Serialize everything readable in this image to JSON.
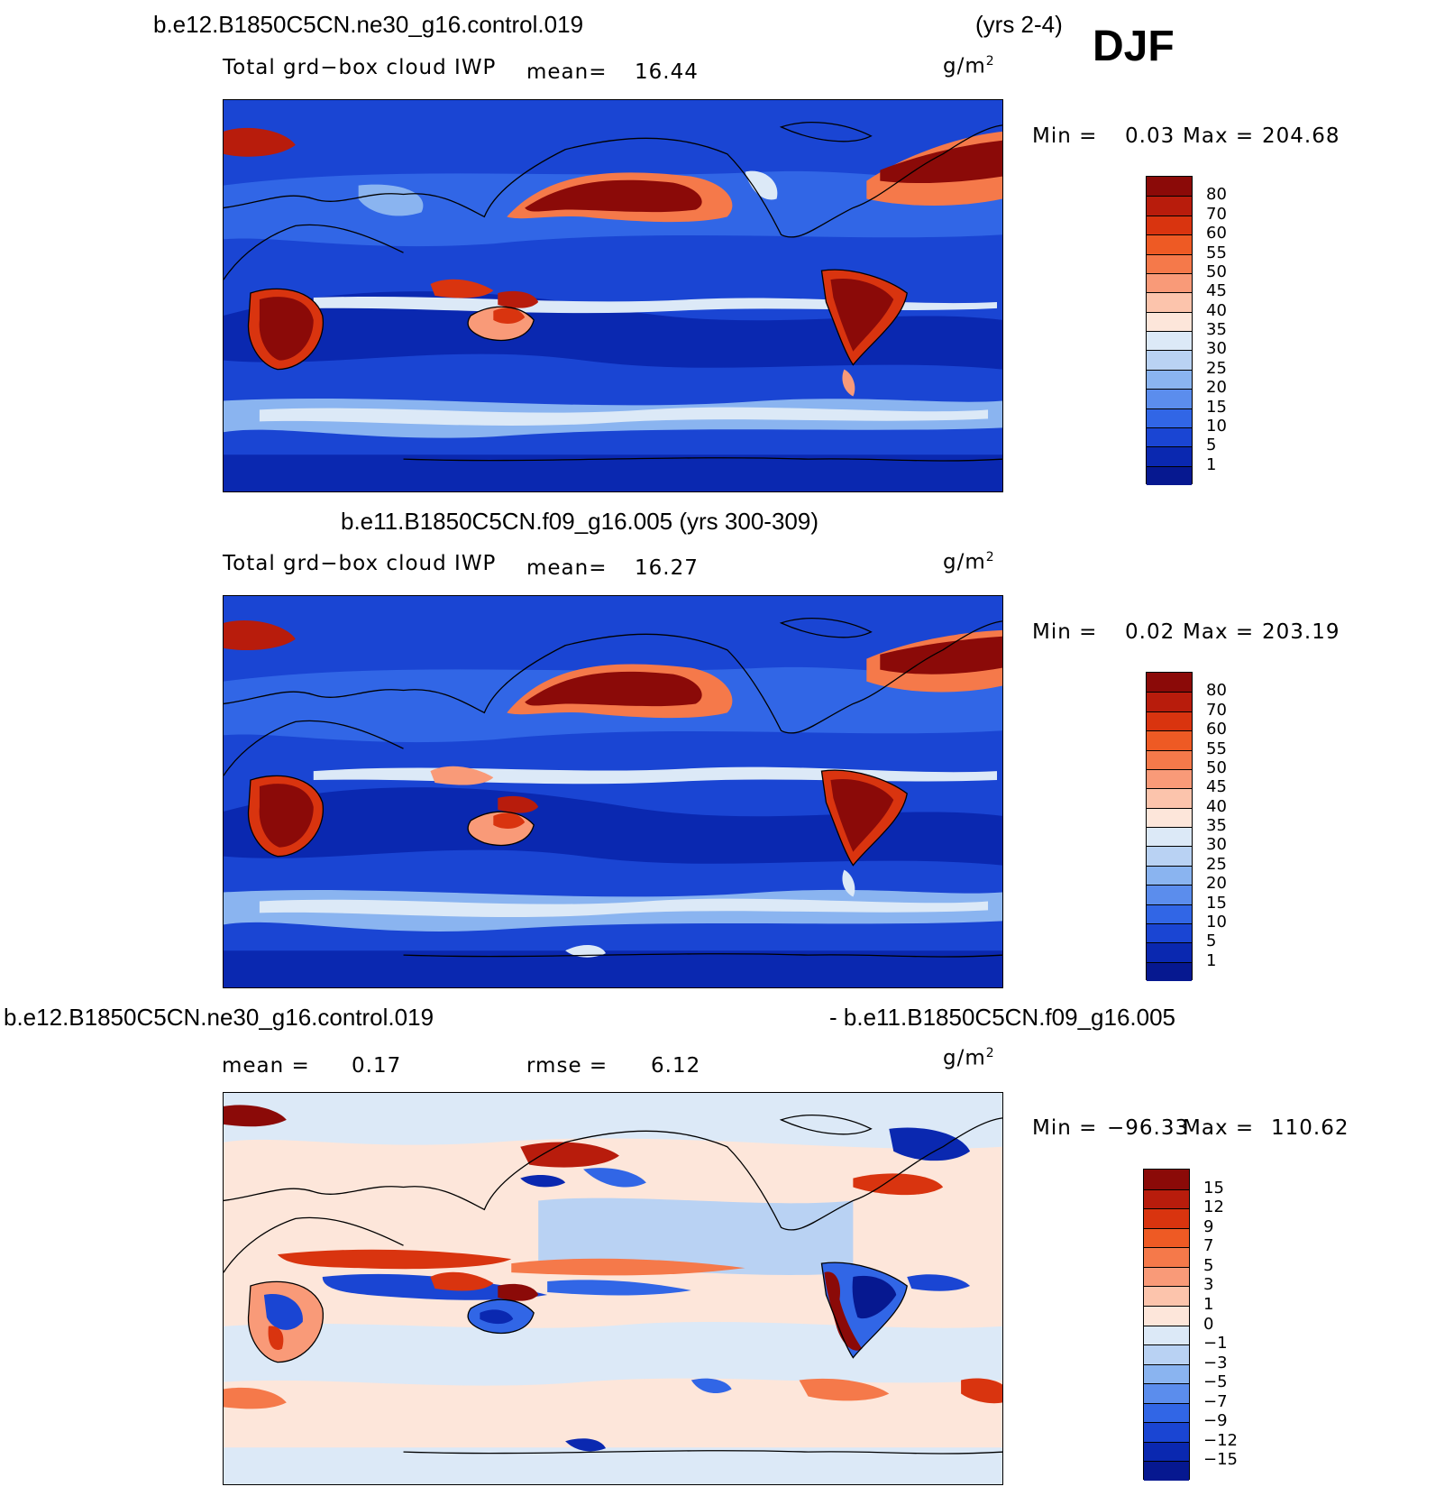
{
  "season": "DJF",
  "panel1": {
    "case": "b.e12.B1850C5CN.ne30_g16.control.019",
    "years": "(yrs 2-4)",
    "variable": "Total grd−box cloud IWP",
    "mean_label": "mean=",
    "mean_value": "16.44",
    "units_base": "g/m",
    "units_exp": "2",
    "min_label": "Min =",
    "min_value": "0.03",
    "max_label": "Max =",
    "max_value": "204.68"
  },
  "panel2": {
    "case": "b.e11.B1850C5CN.f09_g16.005 (yrs 300-309)",
    "variable": "Total grd−box cloud IWP",
    "mean_label": "mean=",
    "mean_value": "16.27",
    "units_base": "g/m",
    "units_exp": "2",
    "min_label": "Min =",
    "min_value": "0.02",
    "max_label": "Max =",
    "max_value": "203.19"
  },
  "panel3": {
    "case_left": "b.e12.B1850C5CN.ne30_g16.control.019",
    "case_right": "- b.e11.B1850C5CN.f09_g16.005",
    "mean_label": "mean =",
    "mean_value": "0.17",
    "rmse_label": "rmse =",
    "rmse_value": "6.12",
    "units_base": "g/m",
    "units_exp": "2",
    "min_label": "Min =",
    "min_value": "−96.33",
    "max_label": "Max =",
    "max_value": "110.62"
  },
  "colorbar_abs": {
    "labels": [
      "80",
      "70",
      "60",
      "55",
      "50",
      "45",
      "40",
      "35",
      "30",
      "25",
      "20",
      "15",
      "10",
      "5",
      "1"
    ],
    "colors": [
      "#8b0a08",
      "#b81c0c",
      "#d9340f",
      "#ee5a24",
      "#f5794a",
      "#f99a78",
      "#fcc4ac",
      "#fde6da",
      "#dce9f7",
      "#b9d2f3",
      "#8ab4f0",
      "#5b8ded",
      "#3166e6",
      "#1a45d3",
      "#0a28b0",
      "#061890"
    ]
  },
  "colorbar_diff": {
    "labels": [
      "15",
      "12",
      "9",
      "7",
      "5",
      "3",
      "1",
      "0",
      "−1",
      "−3",
      "−5",
      "−7",
      "−9",
      "−12",
      "−15"
    ],
    "colors": [
      "#8b0a08",
      "#b81c0c",
      "#d9340f",
      "#ee5a24",
      "#f5794a",
      "#f99a78",
      "#fcc4ac",
      "#fde6da",
      "#dce9f7",
      "#b9d2f3",
      "#8ab4f0",
      "#5b8ded",
      "#3166e6",
      "#1a45d3",
      "#0a28b0",
      "#061890"
    ]
  },
  "palette": {
    "ocean_deep": "#061890",
    "ocean_blue": "#1a45d3",
    "mid_blue": "#3166e6",
    "light_blue": "#8ab4f0",
    "pale": "#dce9f7",
    "red_dark": "#8b0a08",
    "red": "#d9340f",
    "orange": "#f5794a",
    "peach": "#fcc4ac",
    "diff_bg": "#fde6da"
  }
}
